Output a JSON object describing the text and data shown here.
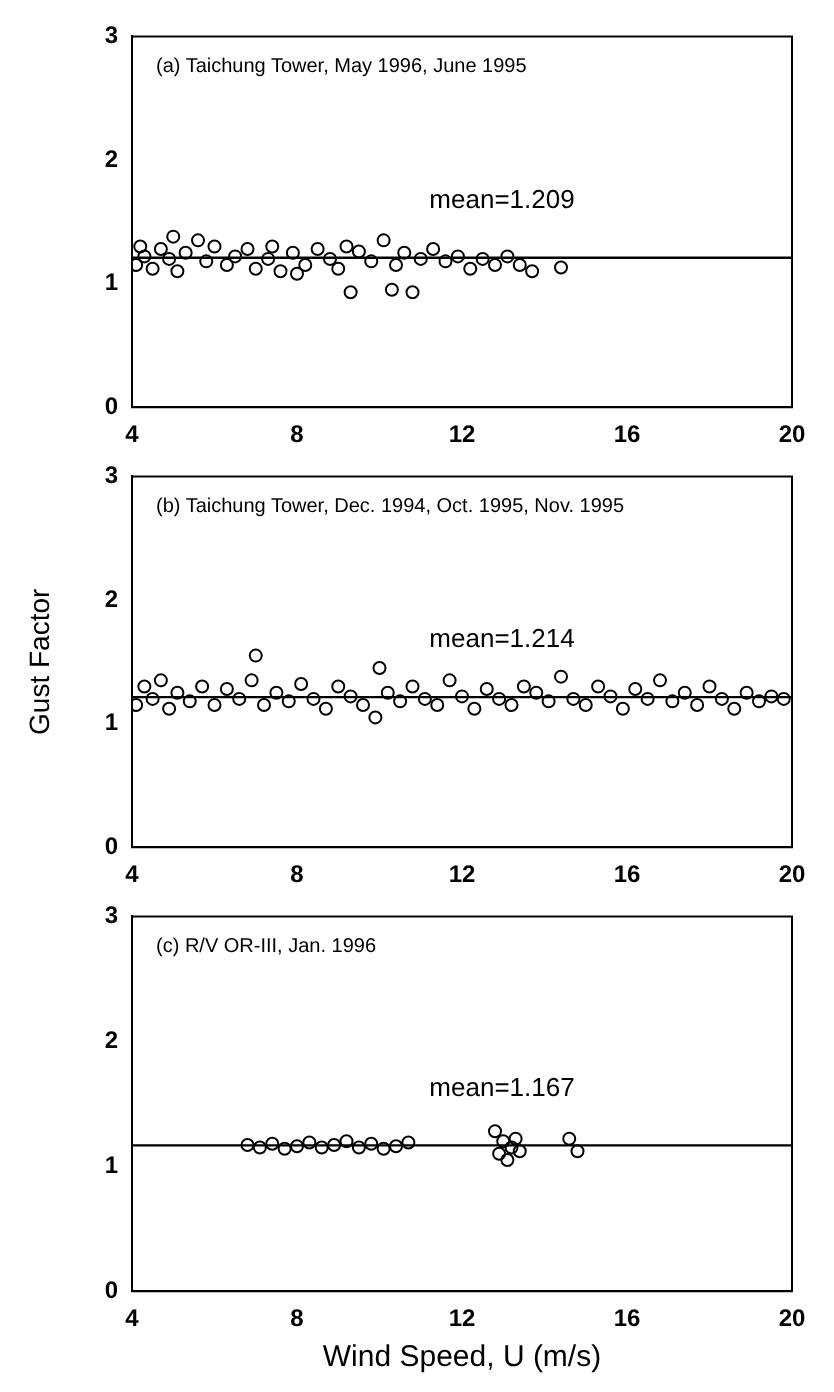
{
  "chart_data": [
    {
      "type": "scatter",
      "annotations": [
        "(a) Taichung Tower, May 1996, June 1995"
      ],
      "marker": "circle",
      "color": "#000000",
      "x": [
        4.1,
        4.2,
        4.3,
        4.5,
        4.7,
        4.9,
        5.0,
        5.1,
        5.3,
        5.6,
        5.8,
        6.0,
        6.3,
        6.5,
        6.8,
        7.0,
        7.3,
        7.4,
        7.6,
        7.9,
        8.0,
        8.2,
        8.5,
        8.8,
        9.0,
        9.2,
        9.3,
        9.5,
        9.8,
        10.1,
        10.3,
        10.4,
        10.6,
        10.8,
        11.0,
        11.3,
        11.6,
        11.9,
        12.2,
        12.5,
        12.8,
        13.1,
        13.4,
        13.7,
        14.4
      ],
      "values": [
        1.15,
        1.3,
        1.22,
        1.12,
        1.28,
        1.2,
        1.38,
        1.1,
        1.25,
        1.35,
        1.18,
        1.3,
        1.15,
        1.22,
        1.28,
        1.12,
        1.2,
        1.3,
        1.1,
        1.25,
        1.08,
        1.15,
        1.28,
        1.2,
        1.12,
        1.3,
        0.93,
        1.26,
        1.18,
        1.35,
        0.95,
        1.15,
        1.25,
        0.93,
        1.2,
        1.28,
        1.18,
        1.22,
        1.12,
        1.2,
        1.15,
        1.22,
        1.15,
        1.1,
        1.13
      ],
      "xlim": [
        4,
        20
      ],
      "ylim": [
        0,
        3
      ],
      "xticks": [
        4,
        8,
        12,
        16,
        20
      ],
      "yticks": [
        0,
        1,
        2,
        3
      ],
      "ref_lines": [
        {
          "axis": "y",
          "value": 1.209,
          "label": "mean=1.209"
        }
      ]
    },
    {
      "type": "scatter",
      "annotations": [
        "(b) Taichung Tower, Dec. 1994, Oct. 1995, Nov. 1995"
      ],
      "ylabel": "Gust Factor",
      "marker": "circle",
      "color": "#000000",
      "x": [
        4.1,
        4.3,
        4.5,
        4.7,
        4.9,
        5.1,
        5.4,
        5.7,
        6.0,
        6.3,
        6.6,
        6.9,
        7.0,
        7.2,
        7.5,
        7.8,
        8.1,
        8.4,
        8.7,
        9.0,
        9.3,
        9.6,
        9.9,
        10.0,
        10.2,
        10.5,
        10.8,
        11.1,
        11.4,
        11.7,
        12.0,
        12.3,
        12.6,
        12.9,
        13.2,
        13.5,
        13.8,
        14.1,
        14.4,
        14.7,
        15.0,
        15.3,
        15.6,
        15.9,
        16.2,
        16.5,
        16.8,
        17.1,
        17.4,
        17.7,
        18.0,
        18.3,
        18.6,
        18.9,
        19.2,
        19.5,
        19.8
      ],
      "values": [
        1.15,
        1.3,
        1.2,
        1.35,
        1.12,
        1.25,
        1.18,
        1.3,
        1.15,
        1.28,
        1.2,
        1.35,
        1.55,
        1.15,
        1.25,
        1.18,
        1.32,
        1.2,
        1.12,
        1.3,
        1.22,
        1.15,
        1.05,
        1.45,
        1.25,
        1.18,
        1.3,
        1.2,
        1.15,
        1.35,
        1.22,
        1.12,
        1.28,
        1.2,
        1.15,
        1.3,
        1.25,
        1.18,
        1.38,
        1.2,
        1.15,
        1.3,
        1.22,
        1.12,
        1.28,
        1.2,
        1.35,
        1.18,
        1.25,
        1.15,
        1.3,
        1.2,
        1.12,
        1.25,
        1.18,
        1.22,
        1.2
      ],
      "xlim": [
        4,
        20
      ],
      "ylim": [
        0,
        3
      ],
      "xticks": [
        4,
        8,
        12,
        16,
        20
      ],
      "yticks": [
        0,
        1,
        2,
        3
      ],
      "ref_lines": [
        {
          "axis": "y",
          "value": 1.214,
          "label": "mean=1.214"
        }
      ]
    },
    {
      "type": "scatter",
      "annotations": [
        "(c) R/V OR-III, Jan. 1996"
      ],
      "xlabel": "Wind Speed, U (m/s)",
      "marker": "circle",
      "color": "#000000",
      "x": [
        6.8,
        7.1,
        7.4,
        7.7,
        8.0,
        8.3,
        8.6,
        8.9,
        9.2,
        9.5,
        9.8,
        10.1,
        10.4,
        10.7,
        12.8,
        12.9,
        13.0,
        13.1,
        13.2,
        13.3,
        13.4,
        14.6,
        14.8
      ],
      "values": [
        1.17,
        1.15,
        1.18,
        1.14,
        1.16,
        1.19,
        1.15,
        1.17,
        1.2,
        1.15,
        1.18,
        1.14,
        1.16,
        1.19,
        1.28,
        1.1,
        1.2,
        1.05,
        1.15,
        1.22,
        1.12,
        1.22,
        1.12
      ],
      "xlim": [
        4,
        20
      ],
      "ylim": [
        0,
        3
      ],
      "xticks": [
        4,
        8,
        12,
        16,
        20
      ],
      "yticks": [
        0,
        1,
        2,
        3
      ],
      "ref_lines": [
        {
          "axis": "y",
          "value": 1.167,
          "label": "mean=1.167"
        }
      ]
    }
  ]
}
